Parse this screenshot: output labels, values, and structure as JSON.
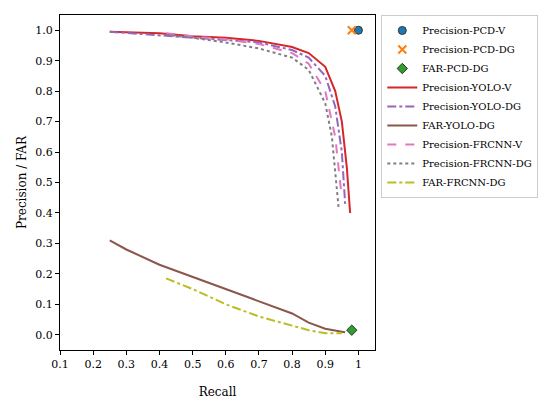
{
  "chart_data": {
    "type": "line",
    "x_label": "Recall",
    "y_label": "Precision / FAR",
    "xlim": [
      0.1,
      1.05
    ],
    "ylim": [
      -0.05,
      1.05
    ],
    "xticks": [
      0.1,
      0.2,
      0.3,
      0.4,
      0.5,
      0.6,
      0.7,
      0.8,
      0.9,
      1.0
    ],
    "yticks": [
      {
        "value": 0,
        "label": "0.0"
      },
      0.1,
      0.2,
      0.3,
      0.4,
      0.5,
      0.6,
      0.7,
      0.8,
      0.9,
      {
        "value": 1,
        "label": "1.0"
      }
    ],
    "grid": false,
    "legend": "right",
    "series": [
      {
        "name": "Precision-PCD-V",
        "type": "scatter",
        "marker": "circle",
        "color": "#1f77b4",
        "x": [
          1.0
        ],
        "values": [
          1.0
        ]
      },
      {
        "name": "Precision-PCD-DG",
        "type": "scatter",
        "marker": "x",
        "color": "#ff7f0e",
        "x": [
          0.98
        ],
        "values": [
          1.0
        ]
      },
      {
        "name": "FAR-PCD-DG",
        "type": "scatter",
        "marker": "diamond",
        "color": "#2ca02c",
        "x": [
          0.98
        ],
        "values": [
          0.015
        ]
      },
      {
        "name": "Precision-YOLO-V",
        "type": "line",
        "line_style": "solid",
        "color": "#d62728",
        "x": [
          0.25,
          0.4,
          0.5,
          0.6,
          0.7,
          0.8,
          0.85,
          0.9,
          0.93,
          0.95,
          0.965,
          0.975
        ],
        "values": [
          0.995,
          0.99,
          0.98,
          0.975,
          0.965,
          0.945,
          0.925,
          0.88,
          0.8,
          0.7,
          0.55,
          0.4
        ]
      },
      {
        "name": "Precision-YOLO-DG",
        "type": "line",
        "line_style": "dashdot",
        "color": "#9467bd",
        "x": [
          0.25,
          0.5,
          0.7,
          0.8,
          0.85,
          0.9,
          0.93,
          0.95,
          0.96
        ],
        "values": [
          0.995,
          0.975,
          0.96,
          0.935,
          0.91,
          0.85,
          0.75,
          0.6,
          0.43
        ]
      },
      {
        "name": "FAR-YOLO-DG",
        "type": "line",
        "line_style": "solid",
        "color": "#8c564b",
        "x": [
          0.25,
          0.3,
          0.4,
          0.5,
          0.6,
          0.7,
          0.8,
          0.85,
          0.9,
          0.95,
          0.96
        ],
        "values": [
          0.31,
          0.28,
          0.23,
          0.19,
          0.15,
          0.11,
          0.07,
          0.04,
          0.02,
          0.01,
          0.008
        ]
      },
      {
        "name": "Precision-FRCNN-V",
        "type": "line",
        "line_style": "dash",
        "color": "#e377c2",
        "x": [
          0.42,
          0.5,
          0.6,
          0.7,
          0.8,
          0.85,
          0.9,
          0.93,
          0.95
        ],
        "values": [
          0.99,
          0.98,
          0.97,
          0.955,
          0.925,
          0.89,
          0.8,
          0.65,
          0.45
        ]
      },
      {
        "name": "Precision-FRCNN-DG",
        "type": "line",
        "line_style": "dot",
        "color": "#7f7f7f",
        "x": [
          0.42,
          0.5,
          0.6,
          0.7,
          0.8,
          0.85,
          0.9,
          0.92,
          0.94
        ],
        "values": [
          0.985,
          0.975,
          0.96,
          0.94,
          0.91,
          0.87,
          0.76,
          0.65,
          0.42
        ]
      },
      {
        "name": "FAR-FRCNN-DG",
        "type": "line",
        "line_style": "dashdot",
        "color": "#bcbd22",
        "x": [
          0.42,
          0.5,
          0.6,
          0.7,
          0.8,
          0.85,
          0.9,
          0.95
        ],
        "values": [
          0.185,
          0.15,
          0.1,
          0.06,
          0.03,
          0.015,
          0.005,
          0.005
        ]
      }
    ]
  }
}
